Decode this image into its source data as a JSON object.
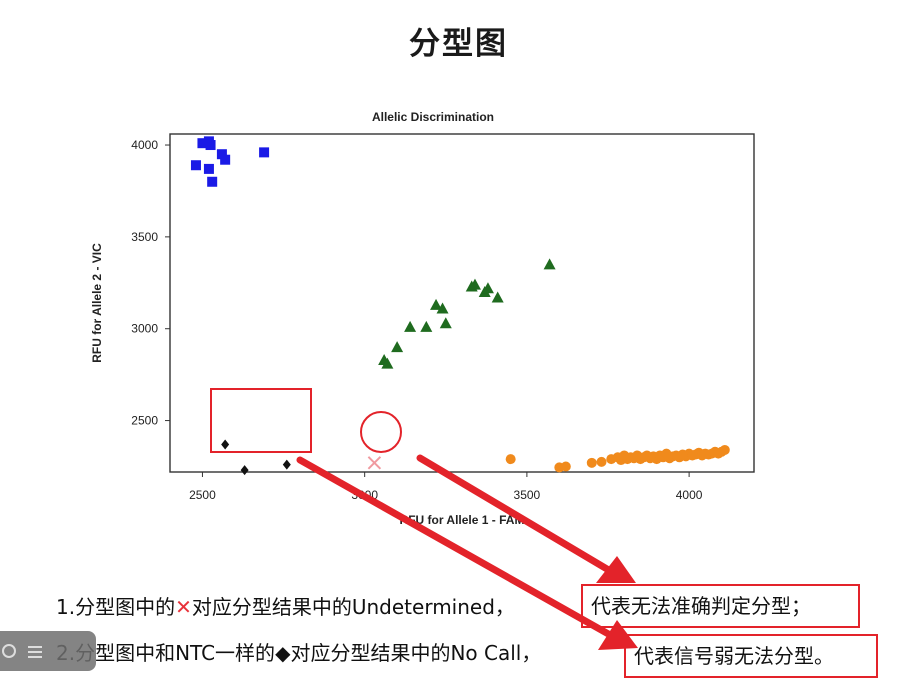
{
  "slide": {
    "title": "分型图"
  },
  "chart_data": {
    "type": "scatter",
    "title": "Allelic Discrimination",
    "xlabel": "RFU for Allele 1 - FAM",
    "ylabel": "RFU for Allele 2 - VIC",
    "xlim": [
      2400,
      4200
    ],
    "ylim": [
      2220,
      4060
    ],
    "xticks": [
      2500,
      3000,
      3500,
      4000
    ],
    "yticks": [
      2500,
      3000,
      3500,
      4000
    ],
    "grid": false,
    "series": [
      {
        "marker": "square",
        "color": "#1a1ae6",
        "points": [
          [
            2480,
            3890
          ],
          [
            2500,
            4010
          ],
          [
            2520,
            4020
          ],
          [
            2525,
            4000
          ],
          [
            2520,
            3870
          ],
          [
            2530,
            3800
          ],
          [
            2560,
            3950
          ],
          [
            2570,
            3920
          ],
          [
            2690,
            3960
          ]
        ]
      },
      {
        "marker": "triangle",
        "color": "#1f6b1f",
        "points": [
          [
            3060,
            2830
          ],
          [
            3070,
            2810
          ],
          [
            3100,
            2900
          ],
          [
            3140,
            3010
          ],
          [
            3190,
            3010
          ],
          [
            3220,
            3130
          ],
          [
            3240,
            3110
          ],
          [
            3250,
            3030
          ],
          [
            3330,
            3230
          ],
          [
            3340,
            3240
          ],
          [
            3370,
            3200
          ],
          [
            3380,
            3220
          ],
          [
            3410,
            3170
          ],
          [
            3570,
            3350
          ]
        ]
      },
      {
        "marker": "circle",
        "color": "#f08a1c",
        "points": [
          [
            3450,
            2290
          ],
          [
            3600,
            2245
          ],
          [
            3620,
            2250
          ],
          [
            3700,
            2270
          ],
          [
            3730,
            2275
          ],
          [
            3760,
            2290
          ],
          [
            3780,
            2300
          ],
          [
            3790,
            2285
          ],
          [
            3800,
            2310
          ],
          [
            3810,
            2290
          ],
          [
            3820,
            2300
          ],
          [
            3830,
            2295
          ],
          [
            3840,
            2310
          ],
          [
            3850,
            2290
          ],
          [
            3860,
            2300
          ],
          [
            3870,
            2310
          ],
          [
            3880,
            2295
          ],
          [
            3890,
            2305
          ],
          [
            3900,
            2290
          ],
          [
            3910,
            2310
          ],
          [
            3920,
            2300
          ],
          [
            3930,
            2320
          ],
          [
            3940,
            2295
          ],
          [
            3950,
            2305
          ],
          [
            3960,
            2310
          ],
          [
            3970,
            2300
          ],
          [
            3980,
            2315
          ],
          [
            3990,
            2305
          ],
          [
            4000,
            2320
          ],
          [
            4010,
            2310
          ],
          [
            4020,
            2315
          ],
          [
            4030,
            2325
          ],
          [
            4040,
            2310
          ],
          [
            4050,
            2320
          ],
          [
            4060,
            2315
          ],
          [
            4070,
            2320
          ],
          [
            4080,
            2330
          ],
          [
            4090,
            2320
          ],
          [
            4100,
            2330
          ],
          [
            4110,
            2340
          ]
        ]
      },
      {
        "marker": "diamond",
        "color": "#111111",
        "points": [
          [
            2570,
            2370
          ],
          [
            2630,
            2230
          ],
          [
            2760,
            2260
          ]
        ]
      },
      {
        "marker": "x",
        "color": "#f09aa0",
        "points": [
          [
            3030,
            2270
          ]
        ]
      }
    ]
  },
  "notes": {
    "line1": {
      "prefix": "1.分型图中的",
      "symbol": "✕",
      "suffix": "对应分型结果中的Undetermined，",
      "boxed": "代表无法准确判定分型；"
    },
    "line2": {
      "prefix": "2.分型图中和NTC一样的",
      "symbol": "◆",
      "suffix": "对应分型结果中的No Call，",
      "boxed": "代表信号弱无法分型。"
    }
  },
  "colors": {
    "annotation_red": "#e3232a"
  }
}
